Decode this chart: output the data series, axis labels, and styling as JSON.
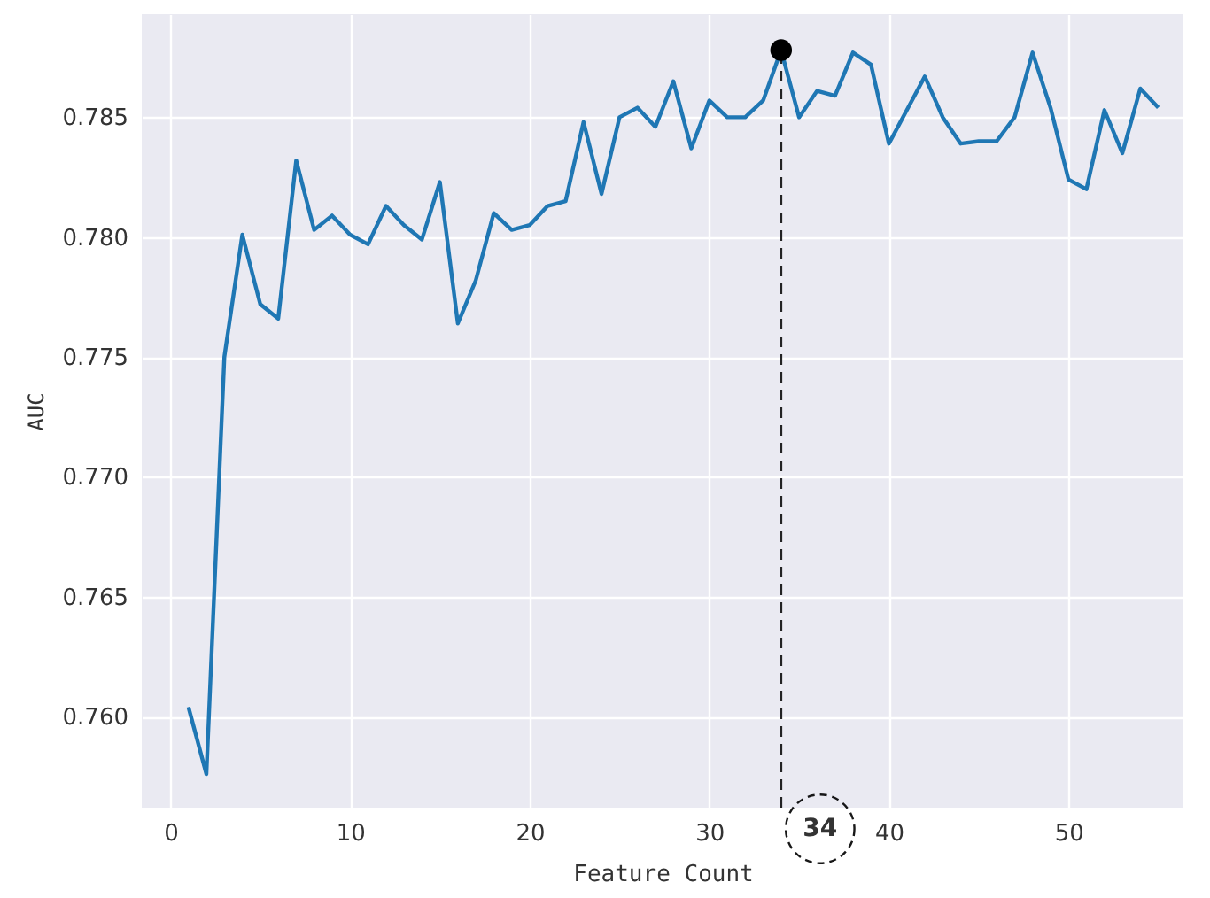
{
  "chart_data": {
    "type": "line",
    "xlabel": "Feature Count",
    "ylabel": "AUC",
    "xlim": [
      -1.6,
      56.4
    ],
    "xticks": [
      0,
      10,
      20,
      30,
      40,
      50
    ],
    "ylim": [
      0.7562,
      0.7893
    ],
    "yticks": [
      {
        "value": 0.76,
        "label": "0.760"
      },
      {
        "value": 0.765,
        "label": "0.765"
      },
      {
        "value": 0.77,
        "label": "0.770"
      },
      {
        "value": 0.775,
        "label": "0.775"
      },
      {
        "value": 0.78,
        "label": "0.780"
      },
      {
        "value": 0.785,
        "label": "0.785"
      }
    ],
    "grid": true,
    "line_style": "solid",
    "series": [
      {
        "color": "#1f77b4",
        "marker": "none",
        "x": [
          1,
          2,
          3,
          4,
          5,
          6,
          7,
          8,
          9,
          10,
          11,
          12,
          13,
          14,
          15,
          16,
          17,
          18,
          19,
          20,
          21,
          22,
          23,
          24,
          25,
          26,
          27,
          28,
          29,
          30,
          31,
          32,
          33,
          34,
          35,
          36,
          37,
          38,
          39,
          40,
          41,
          42,
          43,
          44,
          45,
          46,
          47,
          48,
          49,
          50,
          51,
          52,
          53,
          54,
          55
        ],
        "values": [
          0.7604,
          0.7576,
          0.775,
          0.7801,
          0.7772,
          0.7766,
          0.7832,
          0.7803,
          0.7809,
          0.7801,
          0.7797,
          0.7813,
          0.7805,
          0.7799,
          0.7823,
          0.7764,
          0.7782,
          0.781,
          0.7803,
          0.7805,
          0.7813,
          0.7815,
          0.7848,
          0.7818,
          0.785,
          0.7854,
          0.7846,
          0.7865,
          0.7837,
          0.7857,
          0.785,
          0.785,
          0.7857,
          0.7878,
          0.785,
          0.7861,
          0.7859,
          0.7877,
          0.7872,
          0.7839,
          0.7853,
          0.7867,
          0.785,
          0.7839,
          0.784,
          0.784,
          0.785,
          0.7877,
          0.7854,
          0.7824,
          0.782,
          0.7853,
          0.7835,
          0.7862,
          0.7854
        ]
      },
      {
        "type": "scatter",
        "color": "#000000",
        "marker": "circle",
        "x": [
          34
        ],
        "values": [
          0.7878
        ]
      }
    ],
    "ref_lines": [
      {
        "axis": "x",
        "value": 34,
        "label": "34",
        "color": "#000000",
        "line_style": "dashed"
      }
    ]
  }
}
